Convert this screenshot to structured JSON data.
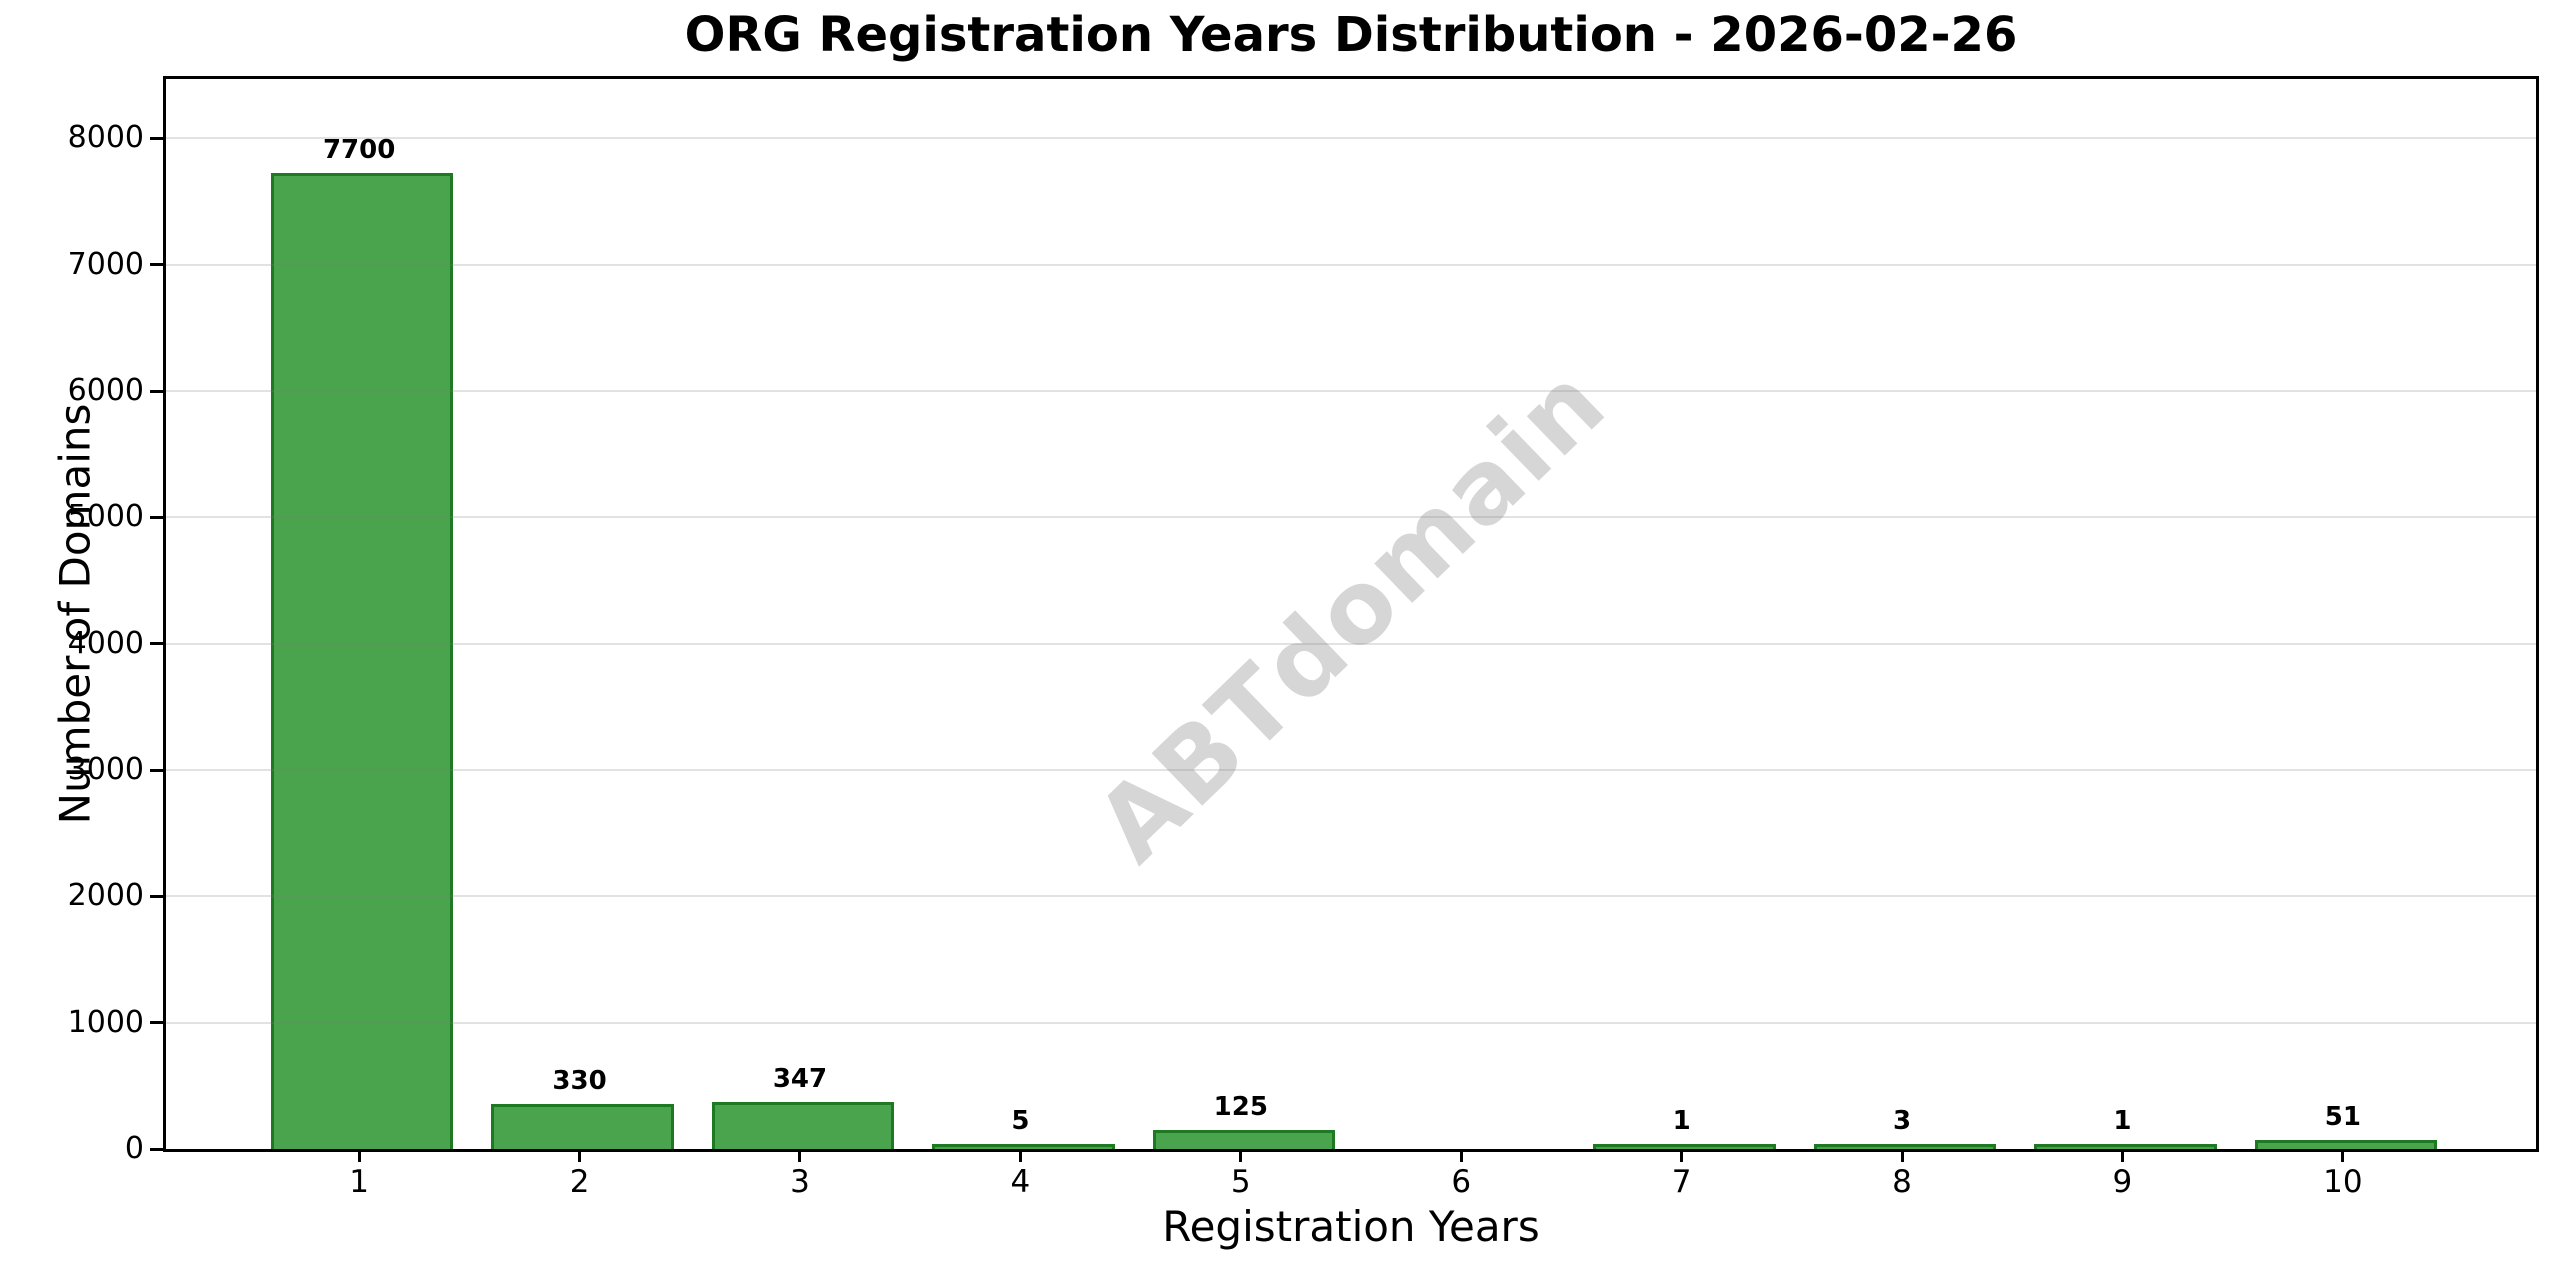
{
  "chart_data": {
    "type": "bar",
    "title": "ORG Registration Years Distribution - 2026-02-26",
    "xlabel": "Registration Years",
    "ylabel": "Number of Domains",
    "categories": [
      "1",
      "2",
      "3",
      "4",
      "5",
      "6",
      "7",
      "8",
      "9",
      "10"
    ],
    "values": [
      7700,
      330,
      347,
      5,
      125,
      0,
      1,
      3,
      1,
      51
    ],
    "bar_labels": [
      "7700",
      "330",
      "347",
      "5",
      "125",
      "",
      "1",
      "3",
      "1",
      "51"
    ],
    "yticks": [
      0,
      1000,
      2000,
      3000,
      4000,
      5000,
      6000,
      7000,
      8000
    ],
    "ylim": [
      0,
      8470
    ],
    "grid": "horizontal-major-only",
    "legend": "none",
    "watermark": "ABTdomain",
    "colors": {
      "bar_fill": "#4aa44e",
      "bar_edge": "#1e7a22",
      "spine": "#000000",
      "grid": "#e9e9e9",
      "watermark": "#d6d6d6",
      "text": "#000000",
      "background": "#ffffff"
    }
  }
}
